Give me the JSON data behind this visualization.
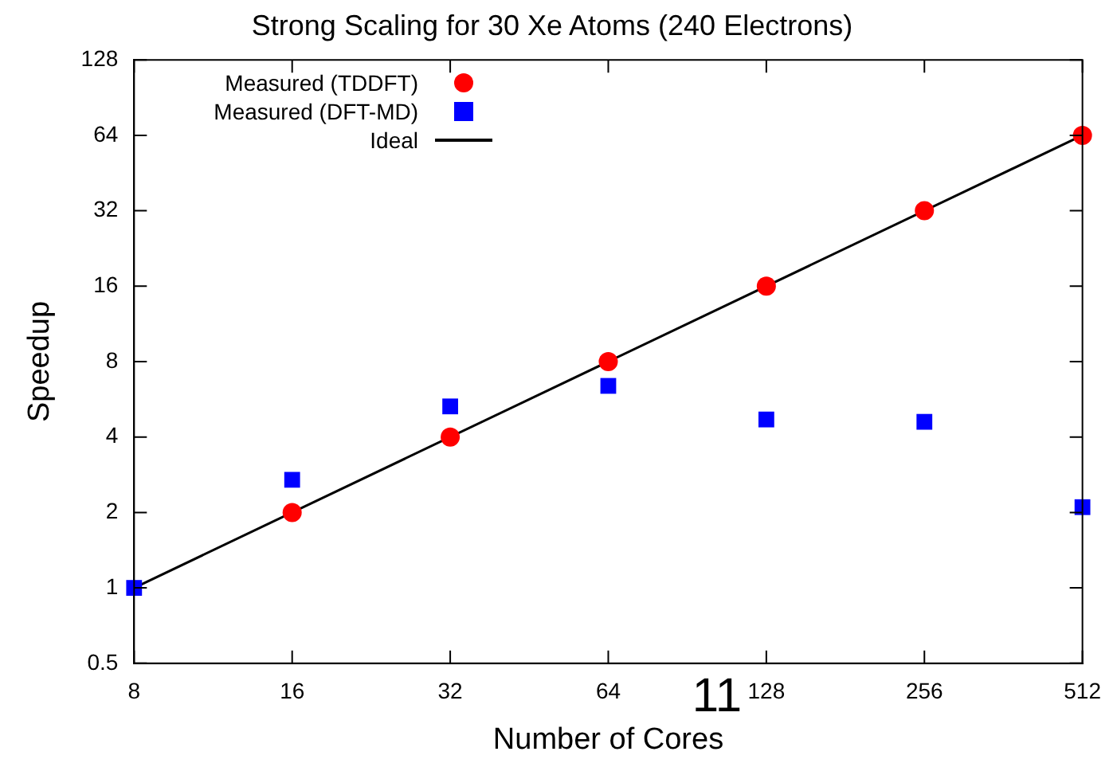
{
  "chart_data": {
    "type": "scatter",
    "title": "Strong Scaling for 30 Xe Atoms (240 Electrons)",
    "xlabel": "Number of Cores",
    "ylabel": "Speedup",
    "log": "xy",
    "legend": "top left",
    "grid": false,
    "xlim": [
      8,
      512
    ],
    "xticks": [
      8,
      16,
      32,
      64,
      128,
      256,
      512
    ],
    "ylim": [
      0.5,
      128
    ],
    "yticks": [
      0.5,
      1,
      2,
      4,
      8,
      16,
      32,
      64,
      128
    ],
    "annotations": [
      "11"
    ],
    "series": [
      {
        "name": "Measured (TDDFT)",
        "color": "#ff0000",
        "marker": "circle",
        "x": [
          16,
          32,
          64,
          128,
          256,
          512
        ],
        "values": [
          2,
          4,
          8,
          16,
          32,
          64
        ]
      },
      {
        "name": "Measured (DFT-MD)",
        "color": "#0000ff",
        "marker": "square",
        "x": [
          8,
          16,
          32,
          64,
          128,
          256,
          512
        ],
        "values": [
          1,
          2.7,
          5.3,
          6.4,
          4.7,
          4.6,
          2.1
        ]
      },
      {
        "name": "Ideal",
        "type": "line",
        "color": "#000000",
        "marker": "none",
        "x": [
          8,
          512
        ],
        "values": [
          1,
          64
        ]
      }
    ]
  }
}
